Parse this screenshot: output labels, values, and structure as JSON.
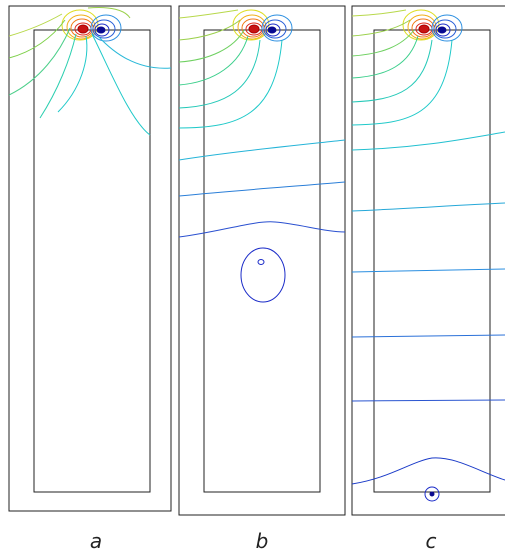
{
  "figure": {
    "panels": [
      {
        "id": "a",
        "label": "a"
      },
      {
        "id": "b",
        "label": "b"
      },
      {
        "id": "c",
        "label": "c"
      }
    ],
    "colormap": {
      "hot_core": "#d41a1a",
      "orange": "#f08a1a",
      "yellow": "#dddd22",
      "green": "#7ed04a",
      "teal": "#1fc9c9",
      "mid_blue": "#2a8ee0",
      "blue": "#2a5fd8",
      "deep_blue": "#1a2bc8",
      "dark_blue": "#0a0a90",
      "frame": "#222222"
    }
  }
}
